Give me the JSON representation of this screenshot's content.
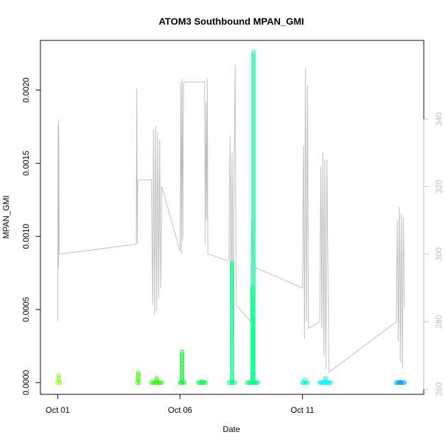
{
  "chart_data": {
    "type": "scatter",
    "title": "ATOM3 Southbound MPAN_GMI",
    "xlabel": "Date",
    "ylabel": "MPAN_GMI",
    "xlim": [
      "2014-09-30T07:00",
      "2014-10-15T23:00"
    ],
    "ylim": [
      -8e-05,
      0.00234
    ],
    "x_ticks": [
      {
        "date": "2014-10-01",
        "label": "Oct 01"
      },
      {
        "date": "2014-10-06",
        "label": "Oct 06"
      },
      {
        "date": "2014-10-11",
        "label": "Oct 11"
      }
    ],
    "y_ticks": [
      {
        "value": 0.0,
        "label": "0.0000"
      },
      {
        "value": 0.0005,
        "label": "0.0005"
      },
      {
        "value": 0.001,
        "label": "0.0010"
      },
      {
        "value": 0.0015,
        "label": "0.0015"
      },
      {
        "value": 0.002,
        "label": "0.0020"
      }
    ],
    "y2lim": [
      258.5,
      363.3
    ],
    "y2_ticks": [
      {
        "value": 260,
        "label": "260"
      },
      {
        "value": 280,
        "label": "280"
      },
      {
        "value": 300,
        "label": "300"
      },
      {
        "value": 320,
        "label": "320"
      },
      {
        "value": 340,
        "label": "340"
      }
    ],
    "grid": false,
    "point_groups": [
      {
        "color": "#80ff00",
        "x_start": "2014-10-01T00:00",
        "x_end": "2014-10-01T02:00",
        "y_max": 5e-05
      },
      {
        "color": "#40ff00",
        "x_start": "2014-10-04T06:00",
        "x_end": "2014-10-04T08:00",
        "y_max": 7e-05
      },
      {
        "color": "#20ff00",
        "x_start": "2014-10-04T20:00",
        "x_end": "2014-10-05T06:00",
        "y_max": 3e-05
      },
      {
        "color": "#00ff20",
        "x_start": "2014-10-06T00:00",
        "x_end": "2014-10-06T04:00",
        "y_max": 0.00021
      },
      {
        "color": "#00ff40",
        "x_start": "2014-10-06T18:00",
        "x_end": "2014-10-07T01:00",
        "y_max": 1e-05
      },
      {
        "color": "#00ff80",
        "x_start": "2014-10-08T00:00",
        "x_end": "2014-10-08T06:00",
        "y_max": 0.00082
      },
      {
        "color": "#00ff60",
        "x_start": "2014-10-08T18:00",
        "x_end": "2014-10-09T04:00",
        "y_max": 0.00065
      },
      {
        "color": "#00ffa0",
        "x_start": "2014-10-08T22:00",
        "x_end": "2014-10-09T02:00",
        "y_max": 0.00226
      },
      {
        "color": "#00ffcc",
        "x_start": "2014-10-11T00:00",
        "x_end": "2014-10-11T05:00",
        "y_max": 2e-05
      },
      {
        "color": "#00f0ff",
        "x_start": "2014-10-11T17:00",
        "x_end": "2014-10-12T04:00",
        "y_max": 3e-05
      },
      {
        "color": "#00a0ff",
        "x_start": "2014-10-14T20:00",
        "x_end": "2014-10-15T04:00",
        "y_max": 5e-06
      }
    ],
    "secondary_line": {
      "color": "#bebebe",
      "points": [
        [
          "2014-10-01T00:00",
          280
        ],
        [
          "2014-10-01T00:20",
          338
        ],
        [
          "2014-10-01T00:40",
          296
        ],
        [
          "2014-10-01T01:00",
          340
        ],
        [
          "2014-10-01T01:30",
          300
        ],
        [
          "2014-10-04T05:00",
          303
        ],
        [
          "2014-10-04T05:30",
          349
        ],
        [
          "2014-10-04T06:00",
          303
        ],
        [
          "2014-10-04T06:30",
          322
        ],
        [
          "2014-10-04T20:00",
          322
        ],
        [
          "2014-10-04T21:00",
          285
        ],
        [
          "2014-10-04T22:00",
          337
        ],
        [
          "2014-10-04T23:00",
          282
        ],
        [
          "2014-10-05T00:00",
          338
        ],
        [
          "2014-10-05T01:00",
          283
        ],
        [
          "2014-10-05T02:00",
          336
        ],
        [
          "2014-10-05T03:00",
          287
        ],
        [
          "2014-10-05T04:00",
          334
        ],
        [
          "2014-10-05T05:00",
          290
        ],
        [
          "2014-10-05T06:00",
          320
        ],
        [
          "2014-10-06T00:00",
          301
        ],
        [
          "2014-10-06T00:40",
          351
        ],
        [
          "2014-10-06T01:20",
          300
        ],
        [
          "2014-10-06T02:00",
          352
        ],
        [
          "2014-10-06T02:40",
          304
        ],
        [
          "2014-10-06T03:20",
          350
        ],
        [
          "2014-10-06T04:00",
          351
        ],
        [
          "2014-10-07T00:00",
          351
        ],
        [
          "2014-10-07T00:40",
          303
        ],
        [
          "2014-10-07T01:20",
          345
        ],
        [
          "2014-10-07T02:00",
          310
        ],
        [
          "2014-10-07T02:40",
          352
        ],
        [
          "2014-10-07T03:20",
          300
        ],
        [
          "2014-10-08T00:00",
          298
        ],
        [
          "2014-10-08T01:00",
          335
        ],
        [
          "2014-10-08T02:00",
          285
        ],
        [
          "2014-10-08T03:00",
          330
        ],
        [
          "2014-10-08T04:00",
          276
        ],
        [
          "2014-10-08T05:00",
          328
        ],
        [
          "2014-10-08T06:00",
          356
        ],
        [
          "2014-10-08T07:00",
          285
        ],
        [
          "2014-10-08T21:00",
          280
        ],
        [
          "2014-10-08T22:00",
          310
        ],
        [
          "2014-10-09T00:00",
          300
        ],
        [
          "2014-10-09T02:00",
          296
        ],
        [
          "2014-10-11T00:00",
          290
        ],
        [
          "2014-10-11T01:00",
          332
        ],
        [
          "2014-10-11T02:00",
          275
        ],
        [
          "2014-10-11T03:00",
          355
        ],
        [
          "2014-10-11T04:00",
          280
        ],
        [
          "2014-10-11T05:00",
          350
        ],
        [
          "2014-10-11T06:00",
          278
        ],
        [
          "2014-10-11T17:00",
          280
        ],
        [
          "2014-10-11T18:00",
          326
        ],
        [
          "2014-10-11T19:00",
          278
        ],
        [
          "2014-10-11T20:00",
          330
        ],
        [
          "2014-10-11T21:00",
          270
        ],
        [
          "2014-10-11T22:00",
          328
        ],
        [
          "2014-10-11T23:00",
          266
        ],
        [
          "2014-10-12T00:00",
          328
        ],
        [
          "2014-10-12T02:00",
          265
        ],
        [
          "2014-10-14T20:00",
          280
        ],
        [
          "2014-10-14T21:00",
          310
        ],
        [
          "2014-10-14T22:00",
          274
        ],
        [
          "2014-10-14T23:00",
          314
        ],
        [
          "2014-10-15T00:00",
          268
        ],
        [
          "2014-10-15T01:00",
          312
        ],
        [
          "2014-10-15T02:00",
          266
        ],
        [
          "2014-10-15T03:00",
          311
        ],
        [
          "2014-10-15T04:00",
          284
        ]
      ]
    }
  }
}
